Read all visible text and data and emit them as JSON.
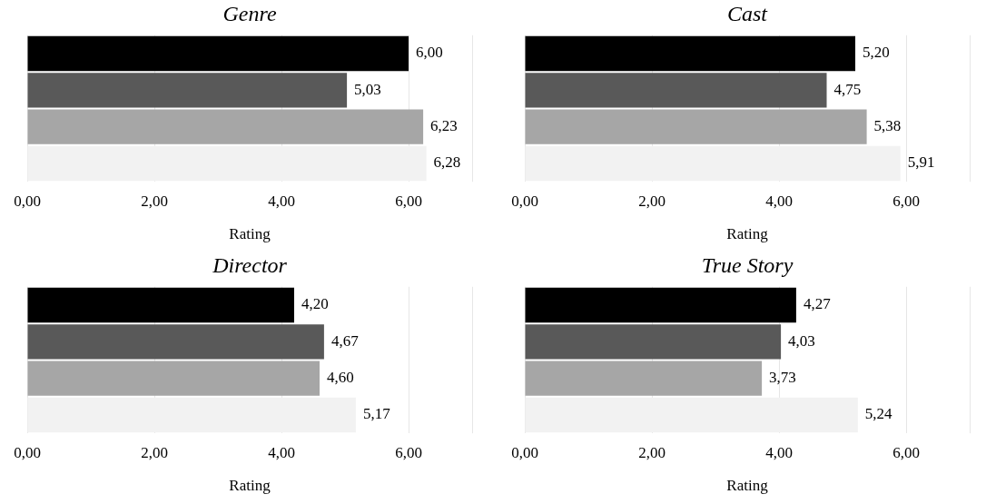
{
  "chart_data": [
    {
      "type": "bar",
      "orientation": "horizontal",
      "title": "Genre",
      "xlabel": "Rating",
      "categories": [
        null,
        null,
        null,
        null
      ],
      "values": [
        6.0,
        5.03,
        6.23,
        6.28
      ],
      "colors": [
        "#000000",
        "#595959",
        "#a6a6a6",
        "#f2f2f2"
      ],
      "value_labels": [
        "6,00",
        "5,03",
        "6,23",
        "6,28"
      ],
      "xlim": [
        0,
        7
      ],
      "xticks": [
        {
          "value": 0,
          "label": "0,00"
        },
        {
          "value": 2,
          "label": "2,00"
        },
        {
          "value": 4,
          "label": "4,00"
        },
        {
          "value": 6,
          "label": "6,00"
        }
      ],
      "grid": "x",
      "legend": false
    },
    {
      "type": "bar",
      "orientation": "horizontal",
      "title": "Cast",
      "xlabel": "Rating",
      "categories": [
        null,
        null,
        null,
        null
      ],
      "values": [
        5.2,
        4.75,
        5.38,
        5.91
      ],
      "colors": [
        "#000000",
        "#595959",
        "#a6a6a6",
        "#f2f2f2"
      ],
      "value_labels": [
        "5,20",
        "4,75",
        "5,38",
        "5,91"
      ],
      "xlim": [
        0,
        7
      ],
      "xticks": [
        {
          "value": 0,
          "label": "0,00"
        },
        {
          "value": 2,
          "label": "2,00"
        },
        {
          "value": 4,
          "label": "4,00"
        },
        {
          "value": 6,
          "label": "6,00"
        }
      ],
      "grid": "x",
      "legend": false
    },
    {
      "type": "bar",
      "orientation": "horizontal",
      "title": "Director",
      "xlabel": "Rating",
      "categories": [
        null,
        null,
        null,
        null
      ],
      "values": [
        4.2,
        4.67,
        4.6,
        5.17
      ],
      "colors": [
        "#000000",
        "#595959",
        "#a6a6a6",
        "#f2f2f2"
      ],
      "value_labels": [
        "4,20",
        "4,67",
        "4,60",
        "5,17"
      ],
      "xlim": [
        0,
        7
      ],
      "xticks": [
        {
          "value": 0,
          "label": "0,00"
        },
        {
          "value": 2,
          "label": "2,00"
        },
        {
          "value": 4,
          "label": "4,00"
        },
        {
          "value": 6,
          "label": "6,00"
        }
      ],
      "grid": "x",
      "legend": false
    },
    {
      "type": "bar",
      "orientation": "horizontal",
      "title": "True Story",
      "xlabel": "Rating",
      "categories": [
        null,
        null,
        null,
        null
      ],
      "values": [
        4.27,
        4.03,
        3.73,
        5.24
      ],
      "colors": [
        "#000000",
        "#595959",
        "#a6a6a6",
        "#f2f2f2"
      ],
      "value_labels": [
        "4,27",
        "4,03",
        "3,73",
        "5,24"
      ],
      "xlim": [
        0,
        7
      ],
      "xticks": [
        {
          "value": 0,
          "label": "0,00"
        },
        {
          "value": 2,
          "label": "2,00"
        },
        {
          "value": 4,
          "label": "4,00"
        },
        {
          "value": 6,
          "label": "6,00"
        }
      ],
      "grid": "x",
      "legend": false
    }
  ]
}
